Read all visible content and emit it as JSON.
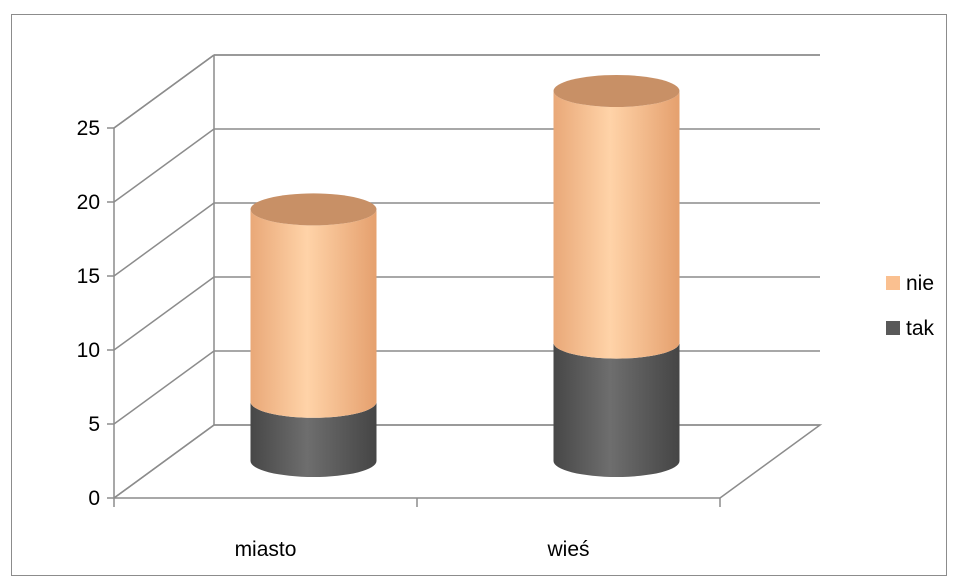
{
  "chart_data": {
    "type": "bar",
    "subtype": "stacked-3d-cylinder",
    "categories": [
      "miasto",
      "wieś"
    ],
    "series": [
      {
        "name": "tak",
        "values": [
          4,
          8
        ],
        "color": "#595959"
      },
      {
        "name": "nie",
        "values": [
          13,
          17
        ],
        "color": "#FAC090"
      }
    ],
    "y_ticks": [
      "0",
      "5",
      "10",
      "15",
      "20",
      "25"
    ],
    "ylim": [
      0,
      25
    ],
    "y_step": 5,
    "grid": true,
    "legend_position": "right",
    "legend_order": [
      "nie",
      "tak"
    ],
    "title": "",
    "xlabel": "",
    "ylabel": ""
  }
}
